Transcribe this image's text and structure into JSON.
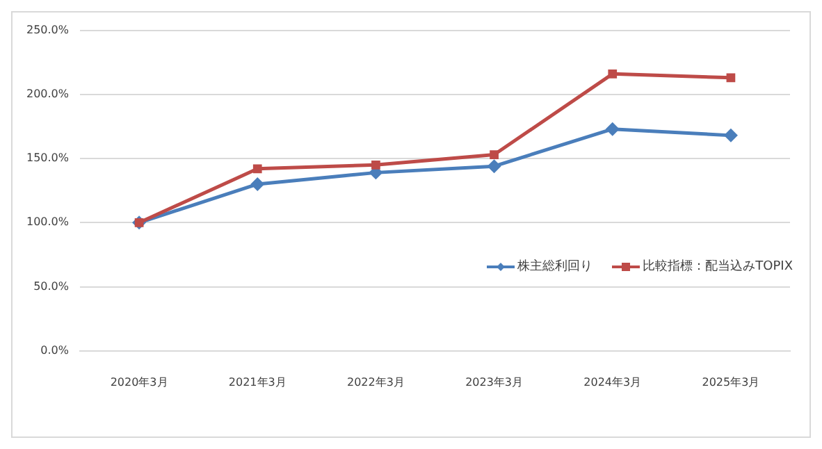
{
  "chart_data": {
    "type": "line",
    "categories": [
      "2020年3月",
      "2021年3月",
      "2022年3月",
      "2023年3月",
      "2024年3月",
      "2025年3月"
    ],
    "series": [
      {
        "name": "株主総利回り",
        "color": "#4a7ebb",
        "marker": "diamond",
        "values": [
          100,
          130,
          139,
          144,
          173,
          168
        ]
      },
      {
        "name": "比較指標：配当込みTOPIX",
        "color": "#be4b48",
        "marker": "square",
        "values": [
          100,
          142,
          145,
          153,
          216,
          213
        ]
      }
    ],
    "ylim": [
      0,
      250
    ],
    "yticks": [
      {
        "value": 0,
        "label": "0.0%"
      },
      {
        "value": 50,
        "label": "50.0%"
      },
      {
        "value": 100,
        "label": "100.0%"
      },
      {
        "value": 150,
        "label": "150.0%"
      },
      {
        "value": 200,
        "label": "200.0%"
      },
      {
        "value": 250,
        "label": "250.0%"
      }
    ],
    "grid": "y",
    "legend": "right"
  }
}
